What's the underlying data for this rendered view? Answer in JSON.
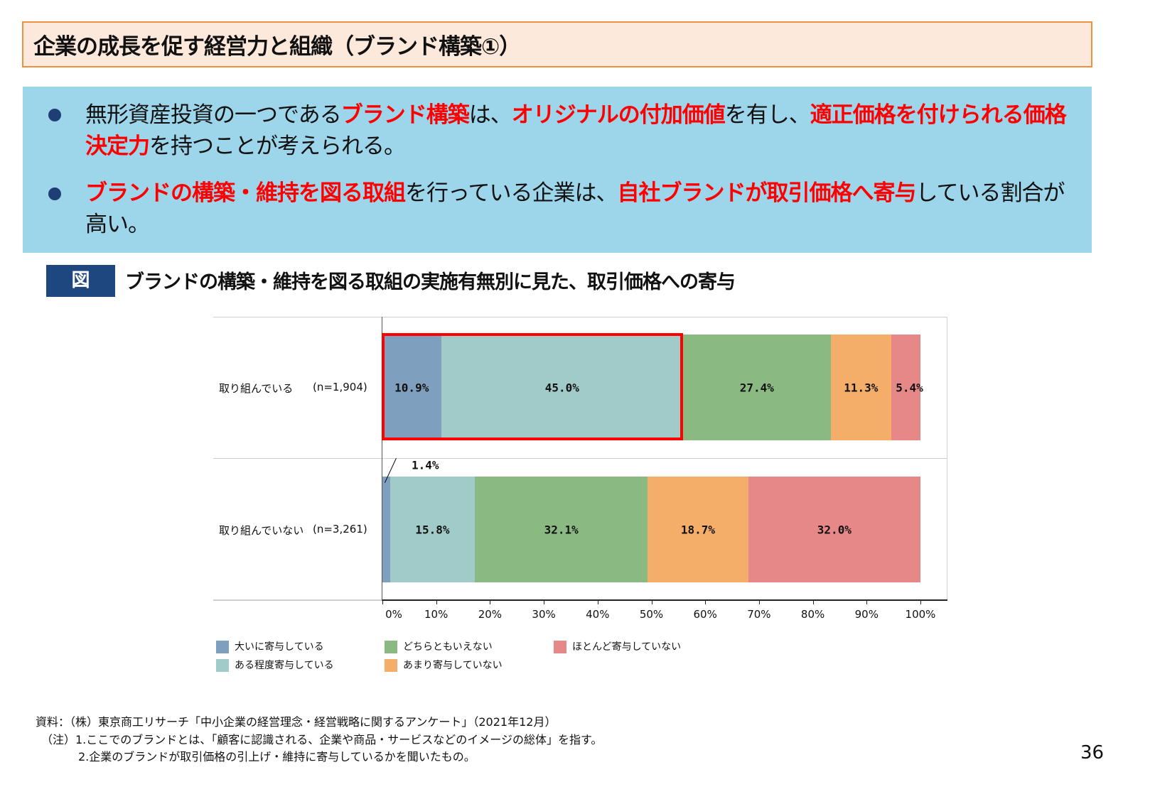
{
  "title": "企業の成長を促す経営力と組織（ブランド構築①）",
  "bullets": [
    [
      {
        "t": "無形資産投資の一つである",
        "r": false
      },
      {
        "t": "ブランド構築",
        "r": true
      },
      {
        "t": "は、",
        "r": false
      },
      {
        "t": "オリジナルの付加価値",
        "r": true
      },
      {
        "t": "を有し、",
        "r": false
      },
      {
        "t": "適正価格を付けられる価格決定力",
        "r": true
      },
      {
        "t": "を持つことが考えられる。",
        "r": false
      }
    ],
    [
      {
        "t": "ブランドの構築・維持を図る取組",
        "r": true
      },
      {
        "t": "を行っている企業は、",
        "r": false
      },
      {
        "t": "自社ブランドが取引価格へ寄与",
        "r": true
      },
      {
        "t": "している割合が高い。",
        "r": false
      }
    ]
  ],
  "figure": {
    "badge": "図",
    "title": "ブランドの構築・維持を図る取組の実施有無別に見た、取引価格への寄与"
  },
  "chart_data": {
    "type": "bar",
    "orientation": "horizontal",
    "stacked": true,
    "categories": [
      {
        "label": "取り組んでいる",
        "n": "(n=1,904)"
      },
      {
        "label": "取り組んでいない",
        "n": "(n=3,261)"
      }
    ],
    "series": [
      {
        "name": "大いに寄与している",
        "color": "#7f9fbf",
        "values": [
          10.9,
          1.4
        ]
      },
      {
        "name": "ある程度寄与している",
        "color": "#a0cbc8",
        "values": [
          45.0,
          15.8
        ]
      },
      {
        "name": "どちらともいえない",
        "color": "#8aba82",
        "values": [
          27.4,
          32.1
        ]
      },
      {
        "name": "あまり寄与していない",
        "color": "#f4ae6a",
        "values": [
          11.3,
          18.7
        ]
      },
      {
        "name": "ほとんど寄与していない",
        "color": "#e78888",
        "values": [
          5.4,
          32.0
        ]
      }
    ],
    "xlim": [
      0,
      100
    ],
    "xticks": [
      "0%",
      "10%",
      "20%",
      "30%",
      "40%",
      "50%",
      "60%",
      "70%",
      "80%",
      "90%",
      "100%"
    ],
    "highlight": {
      "row": 0,
      "series": [
        0,
        1
      ],
      "color": "#ff0000"
    },
    "legend": "bottom"
  },
  "footnotes": [
    "資料：（株）東京商工リサーチ「中小企業の経営理念・経営戦略に関するアンケート」（2021年12月）",
    "（注）1.ここでのブランドとは、「顧客に認識される、企業や商品・サービスなどのイメージの総体」を指す。",
    "2.企業のブランドが取引価格の引上げ・維持に寄与しているかを聞いたもの。"
  ],
  "page_number": "36"
}
